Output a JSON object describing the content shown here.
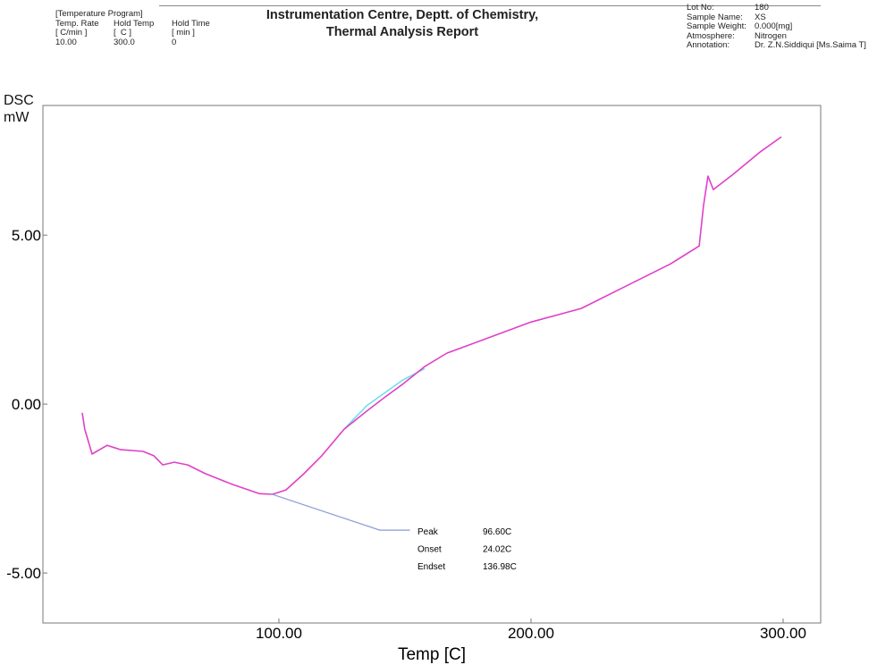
{
  "header": {
    "program_title": "[Temperature Program]",
    "columns": [
      {
        "name": "Temp. Rate",
        "unit": "[ C/min ]",
        "value": "10.00"
      },
      {
        "name": "Hold Temp",
        "unit": "[  C ]",
        "value": "300.0"
      },
      {
        "name": "Hold Time",
        "unit": "[ min ]",
        "value": "0"
      }
    ],
    "title_line1": "Instrumentation Centre, Deptt. of Chemistry,",
    "title_line2": "Thermal Analysis Report",
    "meta": [
      {
        "key": "Lot No:",
        "value": "180"
      },
      {
        "key": "Sample Name:",
        "value": "XS"
      },
      {
        "key": "Sample Weight:",
        "value": "0.000[mg]"
      },
      {
        "key": "Atmosphere:",
        "value": "Nitrogen"
      },
      {
        "key": "Annotation:",
        "value": "Dr. Z.N.Siddiqui [Ms.Saima T]"
      }
    ]
  },
  "chart_data": {
    "type": "line",
    "ylabel_line1": "DSC",
    "ylabel_line2": "mW",
    "xlabel": "Temp  [C]",
    "xlim": [
      6.4,
      314.9
    ],
    "ylim": [
      -6.48,
      8.84
    ],
    "xticks": [
      {
        "value": 100,
        "label": "100.00"
      },
      {
        "value": 200,
        "label": "200.00"
      },
      {
        "value": 300,
        "label": "300.00"
      }
    ],
    "yticks": [
      {
        "value": 5,
        "label": "5.00"
      },
      {
        "value": 0,
        "label": "0.00"
      },
      {
        "value": -5,
        "label": "-5.00"
      }
    ],
    "grid": false,
    "series": [
      {
        "name": "DSC",
        "color": "#e040c8",
        "x": [
          22.0,
          23.0,
          25.9,
          27.7,
          31.9,
          37.2,
          46.1,
          50.4,
          53.9,
          58.5,
          63.8,
          70.9,
          81.6,
          92.2,
          97.5,
          102.8,
          109.9,
          117.0,
          125.9,
          134.8,
          141.8,
          148.9,
          157.8,
          166.7,
          180.9,
          200.0,
          219.9,
          237.6,
          255.3,
          266.7,
          268.4,
          270.2,
          272.3,
          280.1,
          290.8,
          299.3
        ],
        "y": [
          -0.26,
          -0.74,
          -1.48,
          -1.4,
          -1.22,
          -1.35,
          -1.4,
          -1.53,
          -1.8,
          -1.72,
          -1.8,
          -2.06,
          -2.38,
          -2.65,
          -2.67,
          -2.54,
          -2.06,
          -1.53,
          -0.74,
          -0.21,
          0.19,
          0.58,
          1.11,
          1.51,
          1.9,
          2.43,
          2.83,
          3.49,
          4.15,
          4.68,
          5.87,
          6.75,
          6.35,
          6.8,
          7.46,
          7.91
        ]
      },
      {
        "name": "baseline",
        "color": "#6ee0e8",
        "x": [
          125.9,
          134.8,
          148.9,
          157.8
        ],
        "y": [
          -0.74,
          -0.05,
          0.7,
          1.05
        ]
      }
    ],
    "annotation": {
      "leader_color": "#8a9ad8",
      "leader_x": [
        96.6,
        140.0,
        152.0
      ],
      "leader_y": [
        -2.65,
        -3.73,
        -3.73
      ],
      "rows": [
        {
          "label": "Peak",
          "value": "96.60C"
        },
        {
          "label": "Onset",
          "value": "24.02C"
        },
        {
          "label": "Endset",
          "value": "136.98C"
        }
      ]
    }
  }
}
